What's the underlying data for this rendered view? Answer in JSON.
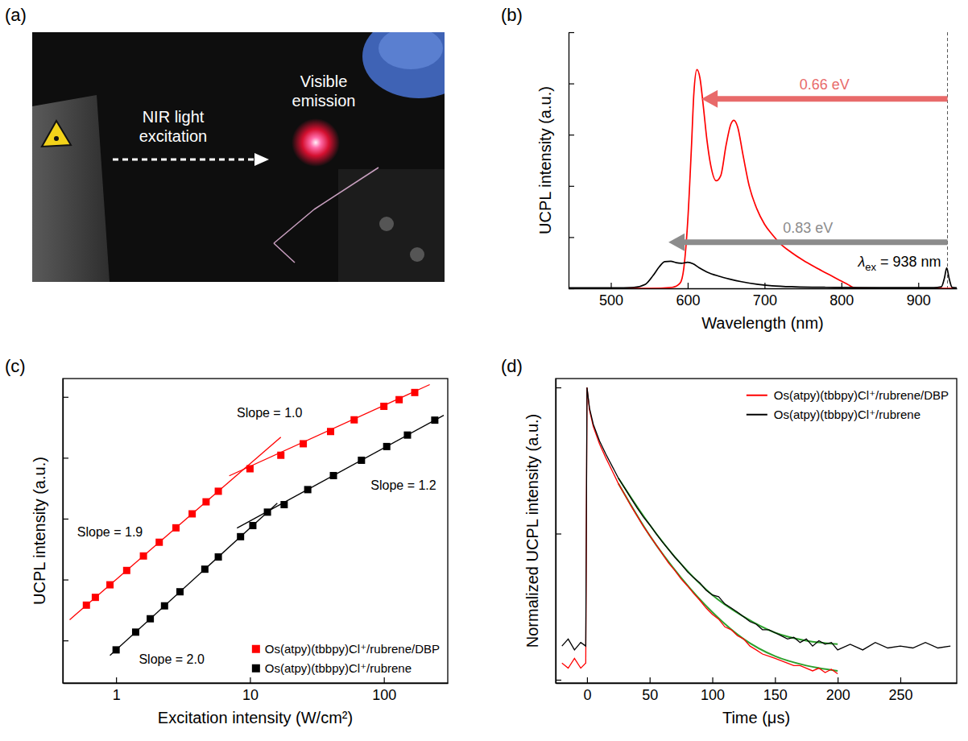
{
  "chart_data": [
    {
      "type": "image",
      "panel": "(a)",
      "annotations": [
        {
          "text": "Visible emission"
        },
        {
          "text": "NIR light excitation"
        }
      ]
    },
    {
      "type": "line",
      "panel": "(b)",
      "x_label": "Wavelength (nm)",
      "y_label": "UCPL intensity (a.u.)",
      "xlim": [
        445,
        950
      ],
      "ylim": [
        0,
        5
      ],
      "xticks": [
        500,
        600,
        700,
        800,
        900
      ],
      "yticks": [
        0,
        1,
        2,
        3,
        4,
        5
      ],
      "tick_labels": "x",
      "series": [
        {
          "color": "#ff0000",
          "x": [
            445,
            500,
            550,
            580,
            590,
            595,
            600,
            605,
            608,
            612,
            616,
            620,
            625,
            630,
            637,
            643,
            650,
            656,
            660,
            665,
            672,
            680,
            690,
            700,
            710,
            720,
            735,
            750,
            765,
            780,
            790,
            800,
            808,
            815,
            820,
            900,
            950
          ],
          "values": [
            0,
            0,
            0,
            0.02,
            0.1,
            0.4,
            1.3,
            2.8,
            3.8,
            4.27,
            4.1,
            3.6,
            2.9,
            2.4,
            2.1,
            2.2,
            2.8,
            3.2,
            3.28,
            3.15,
            2.6,
            2.0,
            1.55,
            1.25,
            1.05,
            0.88,
            0.7,
            0.55,
            0.42,
            0.3,
            0.22,
            0.14,
            0.08,
            0.02,
            0,
            0,
            0
          ]
        },
        {
          "color": "#000000",
          "x": [
            445,
            500,
            530,
            545,
            555,
            563,
            570,
            578,
            585,
            592,
            600,
            607,
            615,
            625,
            640,
            655,
            670,
            690,
            710,
            740,
            780,
            850,
            920,
            930,
            934,
            937,
            940,
            944,
            950
          ],
          "values": [
            0.01,
            0.01,
            0.02,
            0.08,
            0.25,
            0.42,
            0.52,
            0.53,
            0.5,
            0.49,
            0.51,
            0.48,
            0.4,
            0.32,
            0.24,
            0.18,
            0.13,
            0.08,
            0.05,
            0.03,
            0.02,
            0.015,
            0.015,
            0.03,
            0.2,
            0.4,
            0.2,
            0.02,
            0.01
          ]
        }
      ],
      "arrows": [
        {
          "label": "0.66 eV",
          "x_from": 938,
          "x_to": 618,
          "y": 3.7,
          "color": "#e86a6a"
        },
        {
          "label": "0.83 eV",
          "x_from": 938,
          "x_to": 575,
          "y": 0.9,
          "color": "#8c8c8c"
        }
      ],
      "excitation": {
        "value": 938,
        "label_parts": [
          "λ",
          "ex",
          " = 938 nm"
        ]
      }
    },
    {
      "type": "scatter",
      "panel": "(c)",
      "log": true,
      "x_label": "Excitation intensity (W/cm²)",
      "y_label": "UCPL intensity (a.u.)",
      "xlim": [
        0.4,
        300
      ],
      "ylim": [
        0.02,
        2000
      ],
      "xticks": [
        1,
        10,
        100
      ],
      "yticks": [
        0.1,
        1,
        10,
        100,
        1000
      ],
      "tick_labels": "x",
      "legend": "lower right",
      "marker": "square",
      "series": [
        {
          "name": "Os(atpy)(tbbpy)Cl⁺/rubrene/DBP",
          "color": "#ff0000",
          "x": [
            0.6,
            0.7,
            0.9,
            1.2,
            1.6,
            2.1,
            2.8,
            3.7,
            4.7,
            5.8,
            10,
            17,
            25,
            40,
            60,
            100,
            130,
            170
          ],
          "values": [
            0.38,
            0.51,
            0.82,
            1.41,
            2.44,
            4.1,
            7.07,
            12,
            18.9,
            28.2,
            66,
            110,
            170,
            270,
            420,
            700,
            900,
            1180
          ]
        },
        {
          "name": "Os(atpy)(tbbpy)Cl⁺/rubrene",
          "color": "#000000",
          "x": [
            1,
            1.4,
            1.8,
            2.3,
            3,
            4.6,
            5.8,
            8.5,
            10.5,
            13.5,
            18,
            27,
            42,
            68,
            105,
            150,
            240
          ],
          "values": [
            0.07,
            0.137,
            0.227,
            0.37,
            0.63,
            1.48,
            2.35,
            5.06,
            7.7,
            12.8,
            17,
            30,
            51,
            91,
            153,
            236,
            415
          ]
        }
      ],
      "fits": [
        {
          "label": "Slope = 1.9",
          "color": "#ff0000",
          "x": [
            0.45,
            17
          ],
          "values": [
            0.219,
            218
          ],
          "label_x": 0.9,
          "label_y": 6
        },
        {
          "label": "Slope = 1.0",
          "color": "#ff0000",
          "x": [
            7,
            220
          ],
          "values": [
            50.6,
            1591
          ],
          "label_x": 14,
          "label_y": 550
        },
        {
          "label": "Slope = 2.0",
          "color": "#000000",
          "x": [
            0.9,
            16
          ],
          "values": [
            0.0567,
            17.9
          ],
          "label_x": 2.6,
          "label_y": 0.05
        },
        {
          "label": "Slope = 1.2",
          "color": "#000000",
          "x": [
            8,
            280
          ],
          "values": [
            7.0,
            499
          ],
          "label_x": 140,
          "label_y": 35
        }
      ]
    },
    {
      "type": "line",
      "panel": "(d)",
      "log": "y",
      "x_label": "Time (μs)",
      "y_label": "Normalized UCPL intensity (a.u.)",
      "xlim": [
        -25,
        295
      ],
      "ylim": [
        0.0095,
        1.15
      ],
      "xticks": [
        0,
        50,
        100,
        150,
        200,
        250
      ],
      "yticks": [
        0.01,
        0.1,
        1
      ],
      "tick_labels": "x",
      "legend": "upper right",
      "series": [
        {
          "name": "Os(atpy)(tbbpy)Cl⁺/rubrene/DBP",
          "color": "#ff0000",
          "x": [
            -20,
            -15,
            -10,
            -5,
            -1,
            0,
            2,
            5,
            10,
            15,
            20,
            25,
            30,
            35,
            40,
            45,
            50,
            55,
            60,
            65,
            70,
            75,
            80,
            85,
            90,
            95,
            100,
            105,
            110,
            115,
            120,
            125,
            130,
            135,
            140,
            145,
            150,
            155,
            160,
            165,
            170,
            175,
            180,
            185,
            190,
            195,
            200
          ],
          "values": [
            0.013,
            0.012,
            0.014,
            0.012,
            0.013,
            1.0,
            0.7,
            0.54,
            0.41,
            0.33,
            0.27,
            0.22,
            0.185,
            0.155,
            0.132,
            0.112,
            0.097,
            0.084,
            0.073,
            0.063,
            0.056,
            0.049,
            0.044,
            0.039,
            0.035,
            0.031,
            0.028,
            0.026,
            0.023,
            0.022,
            0.02,
            0.019,
            0.017,
            0.016,
            0.015,
            0.0145,
            0.014,
            0.0135,
            0.013,
            0.0125,
            0.0125,
            0.012,
            0.0115,
            0.012,
            0.0112,
            0.0118,
            0.011
          ]
        },
        {
          "name": "Os(atpy)(tbbpy)Cl⁺/rubrene",
          "color": "#000000",
          "x": [
            -20,
            -15,
            -10,
            -5,
            -1,
            0,
            2,
            5,
            10,
            15,
            20,
            25,
            30,
            35,
            40,
            45,
            50,
            55,
            60,
            65,
            70,
            75,
            80,
            85,
            90,
            95,
            100,
            105,
            110,
            115,
            120,
            125,
            130,
            135,
            140,
            145,
            150,
            155,
            160,
            165,
            170,
            175,
            180,
            185,
            190,
            195,
            200,
            210,
            220,
            230,
            240,
            250,
            260,
            270,
            280,
            290
          ],
          "values": [
            0.017,
            0.019,
            0.016,
            0.018,
            0.017,
            1.0,
            0.72,
            0.56,
            0.43,
            0.35,
            0.29,
            0.24,
            0.205,
            0.175,
            0.15,
            0.13,
            0.115,
            0.1,
            0.088,
            0.078,
            0.069,
            0.062,
            0.055,
            0.05,
            0.046,
            0.041,
            0.038,
            0.037,
            0.033,
            0.031,
            0.029,
            0.027,
            0.025,
            0.024,
            0.022,
            0.022,
            0.021,
            0.02,
            0.019,
            0.0195,
            0.018,
            0.019,
            0.017,
            0.0185,
            0.0175,
            0.018,
            0.016,
            0.0175,
            0.016,
            0.018,
            0.0165,
            0.017,
            0.0165,
            0.018,
            0.0165,
            0.017
          ]
        }
      ],
      "fits": [
        {
          "color": "#2ca02c",
          "x": [
            25,
            50,
            75,
            100,
            125,
            150,
            175,
            200
          ],
          "values": [
            0.22,
            0.097,
            0.05,
            0.029,
            0.019,
            0.0145,
            0.0125,
            0.0115
          ]
        },
        {
          "color": "#2ca02c",
          "x": [
            25,
            50,
            75,
            100,
            125,
            150,
            175,
            200
          ],
          "values": [
            0.24,
            0.115,
            0.062,
            0.038,
            0.027,
            0.021,
            0.0185,
            0.0175
          ]
        }
      ]
    }
  ]
}
